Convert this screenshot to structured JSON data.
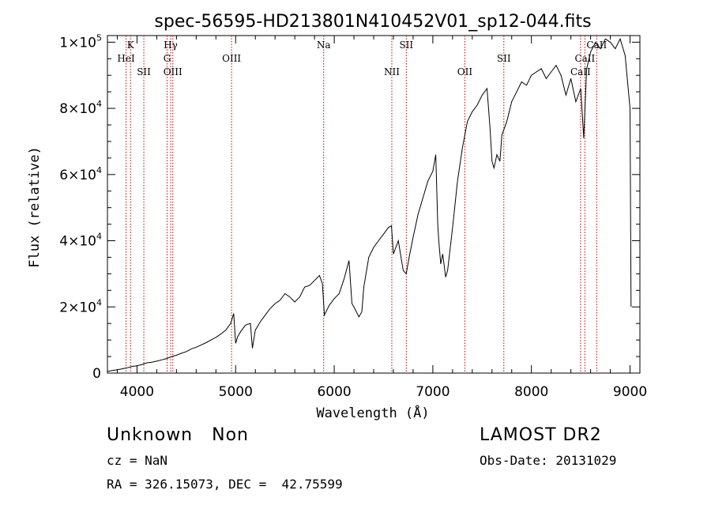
{
  "chart_data": {
    "type": "line",
    "title": "spec-56595-HD213801N410452V01_sp12-044.fits",
    "xlabel": "Wavelength (Å)",
    "ylabel": "Flux (relative)",
    "xlim": [
      3700,
      9100
    ],
    "ylim": [
      0,
      102000
    ],
    "x_ticks": [
      4000,
      5000,
      6000,
      7000,
      8000,
      9000
    ],
    "x_tick_labels": [
      "4000",
      "5000",
      "6000",
      "7000",
      "8000",
      "9000"
    ],
    "y_ticks": [
      0,
      20000,
      40000,
      60000,
      80000,
      100000
    ],
    "y_tick_labels": [
      {
        "mantissa": "0",
        "exp": ""
      },
      {
        "mantissa": "2×10",
        "exp": "4"
      },
      {
        "mantissa": "4×10",
        "exp": "4"
      },
      {
        "mantissa": "6×10",
        "exp": "4"
      },
      {
        "mantissa": "8×10",
        "exp": "4"
      },
      {
        "mantissa": "1×10",
        "exp": "5"
      }
    ],
    "lines": [
      {
        "label": "K",
        "x": 3934,
        "row": 0
      },
      {
        "label": "HeI",
        "x": 3889,
        "row": 1
      },
      {
        "label": "SII",
        "x": 4069,
        "row": 2
      },
      {
        "label": "Hγ",
        "x": 4341,
        "row": 0
      },
      {
        "label": "G",
        "x": 4305,
        "row": 1
      },
      {
        "label": "OIII",
        "x": 4363,
        "row": 2
      },
      {
        "label": "OIII",
        "x": 4959,
        "row": 1
      },
      {
        "label": "Na",
        "x": 5893,
        "row": 0
      },
      {
        "label": "NII",
        "x": 6584,
        "row": 2
      },
      {
        "label": "SII",
        "x": 6731,
        "row": 0
      },
      {
        "label": "OII",
        "x": 7325,
        "row": 2
      },
      {
        "label": "SII",
        "x": 7720,
        "row": 1
      },
      {
        "label": "CaII",
        "x": 8542,
        "row": 1
      },
      {
        "label": "CaII",
        "x": 8498,
        "row": 2
      },
      {
        "label": "CaII",
        "x": 8662,
        "row": 0
      }
    ],
    "series": [
      {
        "x": [
          3700,
          3750,
          3800,
          3850,
          3900,
          3950,
          4000,
          4050,
          4100,
          4150,
          4200,
          4250,
          4300,
          4350,
          4400,
          4450,
          4500,
          4550,
          4600,
          4650,
          4700,
          4750,
          4800,
          4850,
          4900,
          4950,
          4980,
          5000,
          5020,
          5050,
          5100,
          5150,
          5170,
          5200,
          5250,
          5300,
          5350,
          5400,
          5450,
          5500,
          5550,
          5600,
          5650,
          5700,
          5750,
          5800,
          5850,
          5880,
          5900,
          5950,
          6000,
          6050,
          6100,
          6150,
          6180,
          6200,
          6250,
          6280,
          6300,
          6350,
          6400,
          6450,
          6500,
          6550,
          6580,
          6600,
          6650,
          6700,
          6730,
          6760,
          6800,
          6850,
          6900,
          6950,
          7000,
          7030,
          7050,
          7060,
          7080,
          7100,
          7130,
          7150,
          7200,
          7250,
          7300,
          7350,
          7400,
          7450,
          7500,
          7550,
          7580,
          7600,
          7620,
          7650,
          7680,
          7700,
          7750,
          7800,
          7850,
          7900,
          7950,
          8000,
          8050,
          8100,
          8150,
          8200,
          8250,
          8300,
          8350,
          8400,
          8450,
          8500,
          8530,
          8560,
          8600,
          8650,
          8700,
          8750,
          8800,
          8850,
          8900,
          8950,
          9000,
          9010
        ],
        "y": [
          500,
          800,
          1000,
          1300,
          1600,
          2000,
          2200,
          2600,
          3100,
          3300,
          3600,
          4000,
          4400,
          5000,
          5400,
          6000,
          6500,
          7300,
          7800,
          8500,
          9200,
          10000,
          10800,
          11800,
          13000,
          15000,
          18000,
          9000,
          11000,
          12500,
          14500,
          15000,
          7500,
          13000,
          15500,
          17500,
          19500,
          21000,
          22000,
          24000,
          23000,
          21500,
          23000,
          26000,
          26500,
          28000,
          29500,
          27000,
          17500,
          20500,
          22500,
          24000,
          28500,
          34000,
          21000,
          20000,
          17000,
          18500,
          26000,
          35000,
          38000,
          40000,
          42000,
          44000,
          44500,
          36000,
          40000,
          31000,
          30000,
          35000,
          41000,
          48000,
          53000,
          58000,
          61000,
          66000,
          45000,
          40000,
          33000,
          36000,
          29000,
          31000,
          44000,
          58000,
          68000,
          76000,
          79000,
          81000,
          84000,
          86000,
          74000,
          64000,
          62000,
          66000,
          64000,
          72000,
          76000,
          82000,
          85000,
          88000,
          87000,
          90000,
          91000,
          92000,
          89000,
          91000,
          93000,
          90000,
          84000,
          89000,
          82000,
          86000,
          71000,
          92000,
          97000,
          100000,
          98000,
          101000,
          100000,
          98000,
          101000,
          96000,
          80000,
          20000
        ]
      }
    ]
  },
  "info": {
    "left_line1": "Unknown   Non",
    "left_line2": "cz = NaN",
    "left_line3": "RA = 326.15073, DEC =  42.75599",
    "right_line1": "LAMOST DR2",
    "right_line2": "Obs-Date: 20131029"
  }
}
